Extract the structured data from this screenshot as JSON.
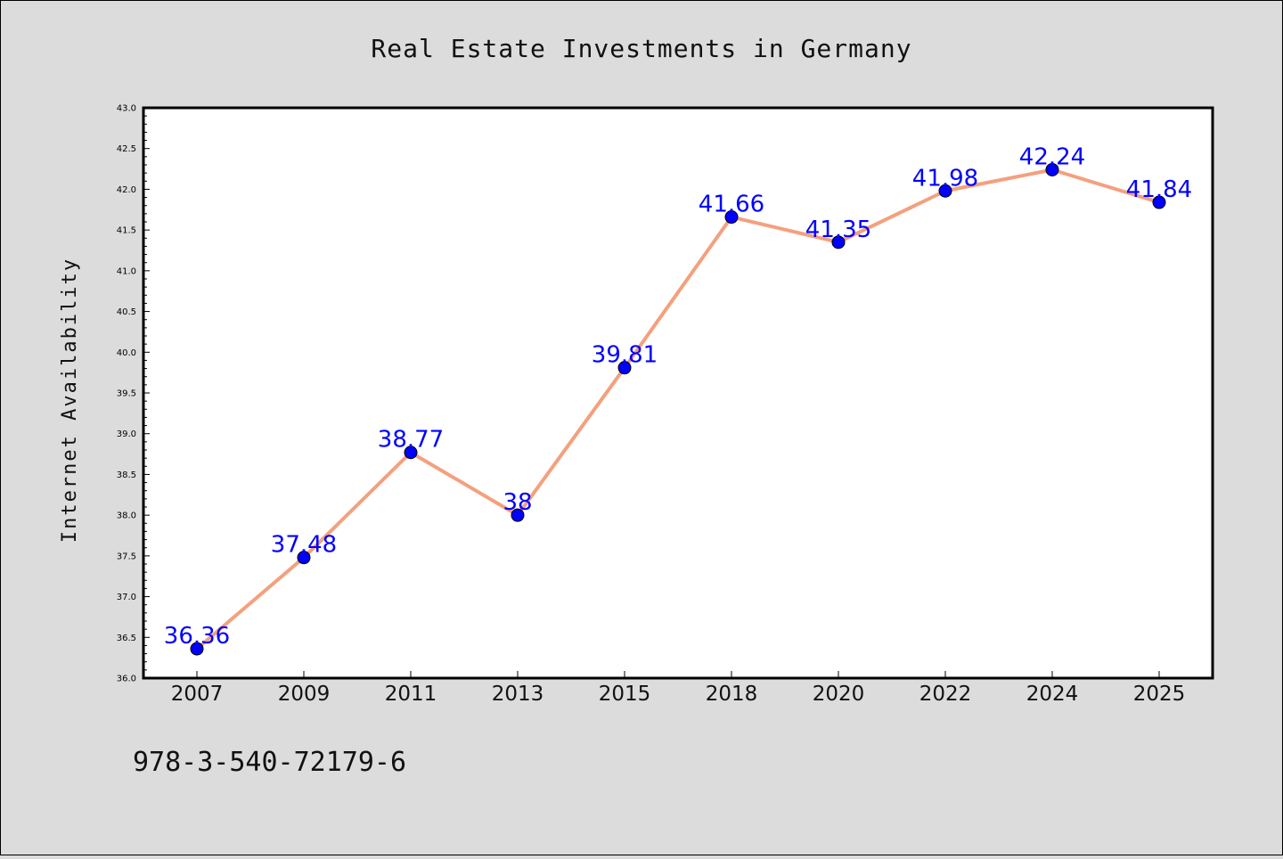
{
  "chart_data": {
    "type": "line",
    "title": "Real Estate Investments in Germany",
    "xlabel": "",
    "ylabel": "Internet Availability",
    "categories": [
      "2007",
      "2009",
      "2011",
      "2013",
      "2015",
      "2018",
      "2020",
      "2022",
      "2024",
      "2025"
    ],
    "series": [
      {
        "values": [
          36.36,
          37.48,
          38.77,
          38,
          39.81,
          41.66,
          41.35,
          41.98,
          42.24,
          41.84
        ],
        "labels": [
          "36.36",
          "37.48",
          "38.77",
          "38",
          "39.81",
          "41.66",
          "41.35",
          "41.98",
          "42.24",
          "41.84"
        ],
        "line_color": "#f4a07e",
        "marker_color": "#0000ff"
      }
    ],
    "ylim": [
      36.0,
      43.0
    ],
    "yticks": [
      "36.0",
      "36.5",
      "37.0",
      "37.5",
      "38.0",
      "38.5",
      "39.0",
      "39.5",
      "40.0",
      "40.5",
      "41.0",
      "41.5",
      "42.0",
      "42.5",
      "43.0"
    ],
    "grid": false,
    "data_label_color": "#0000ff"
  },
  "footnote": "978-3-540-72179-6",
  "colors": {
    "background": "#dcdcdc",
    "plot_background": "#ffffff"
  }
}
